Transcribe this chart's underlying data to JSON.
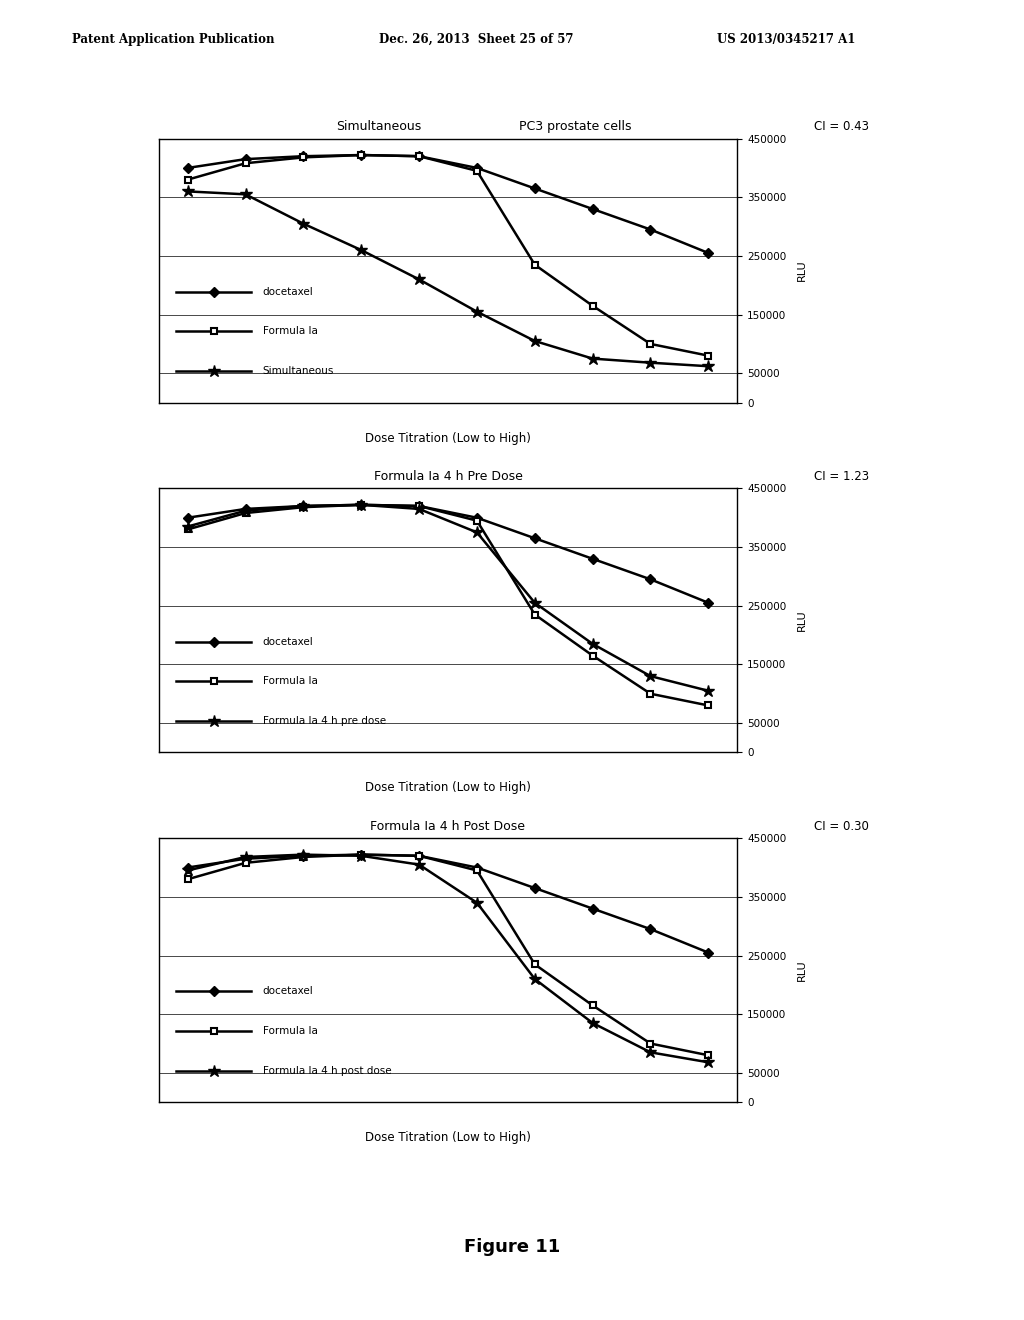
{
  "header_left": "Patent Application Publication",
  "header_mid": "Dec. 26, 2013  Sheet 25 of 57",
  "header_right": "US 2013/0345217 A1",
  "figure_label": "Figure 11",
  "background_color": "#ffffff",
  "charts": [
    {
      "title1": "Simultaneous",
      "title2": "PC3 prostate cells",
      "ci_label": "CI = 0.43",
      "xlabel": "Dose Titration (Low to High)",
      "ylabel": "RLU",
      "ylim": [
        0,
        450000
      ],
      "yticks": [
        0,
        50000,
        150000,
        250000,
        350000,
        450000
      ],
      "x_points": [
        1,
        2,
        3,
        4,
        5,
        6,
        7,
        8,
        9,
        10
      ],
      "series": [
        {
          "name": "docetaxel",
          "marker": "D",
          "values": [
            400000,
            415000,
            420000,
            422000,
            420000,
            400000,
            365000,
            330000,
            295000,
            255000
          ]
        },
        {
          "name": "Formula Ia",
          "marker": "s",
          "values": [
            380000,
            408000,
            418000,
            422000,
            420000,
            395000,
            235000,
            165000,
            100000,
            80000
          ]
        },
        {
          "name": "Simultaneous",
          "marker": "*",
          "values": [
            360000,
            355000,
            305000,
            260000,
            210000,
            155000,
            105000,
            75000,
            68000,
            62000
          ]
        }
      ],
      "legend_entries": [
        "docetaxel",
        "Formula Ia",
        "Simultaneous"
      ]
    },
    {
      "title1": "Formula Ia 4 h Pre Dose",
      "title2": "",
      "ci_label": "CI = 1.23",
      "xlabel": "Dose Titration (Low to High)",
      "ylabel": "RLU",
      "ylim": [
        0,
        450000
      ],
      "yticks": [
        0,
        50000,
        150000,
        250000,
        350000,
        450000
      ],
      "x_points": [
        1,
        2,
        3,
        4,
        5,
        6,
        7,
        8,
        9,
        10
      ],
      "series": [
        {
          "name": "docetaxel",
          "marker": "D",
          "values": [
            400000,
            415000,
            420000,
            422000,
            420000,
            400000,
            365000,
            330000,
            295000,
            255000
          ]
        },
        {
          "name": "Formula Ia",
          "marker": "s",
          "values": [
            380000,
            408000,
            418000,
            422000,
            420000,
            395000,
            235000,
            165000,
            100000,
            80000
          ]
        },
        {
          "name": "Formula Ia 4 h pre dose",
          "marker": "*",
          "values": [
            385000,
            412000,
            420000,
            422000,
            415000,
            375000,
            255000,
            185000,
            130000,
            105000
          ]
        }
      ],
      "legend_entries": [
        "docetaxel",
        "Formula Ia",
        "Formula Ia 4 h pre dose"
      ]
    },
    {
      "title1": "Formula Ia 4 h Post Dose",
      "title2": "",
      "ci_label": "CI = 0.30",
      "xlabel": "Dose Titration (Low to High)",
      "ylabel": "RLU",
      "ylim": [
        0,
        450000
      ],
      "yticks": [
        0,
        50000,
        150000,
        250000,
        350000,
        450000
      ],
      "x_points": [
        1,
        2,
        3,
        4,
        5,
        6,
        7,
        8,
        9,
        10
      ],
      "series": [
        {
          "name": "docetaxel",
          "marker": "D",
          "values": [
            400000,
            415000,
            420000,
            422000,
            420000,
            400000,
            365000,
            330000,
            295000,
            255000
          ]
        },
        {
          "name": "Formula Ia",
          "marker": "s",
          "values": [
            380000,
            408000,
            418000,
            422000,
            420000,
            395000,
            235000,
            165000,
            100000,
            80000
          ]
        },
        {
          "name": "Formula Ia 4 h post dose",
          "marker": "*",
          "values": [
            395000,
            418000,
            422000,
            420000,
            405000,
            340000,
            210000,
            135000,
            85000,
            68000
          ]
        }
      ],
      "legend_entries": [
        "docetaxel",
        "Formula Ia",
        "Formula Ia 4 h post dose"
      ]
    }
  ]
}
